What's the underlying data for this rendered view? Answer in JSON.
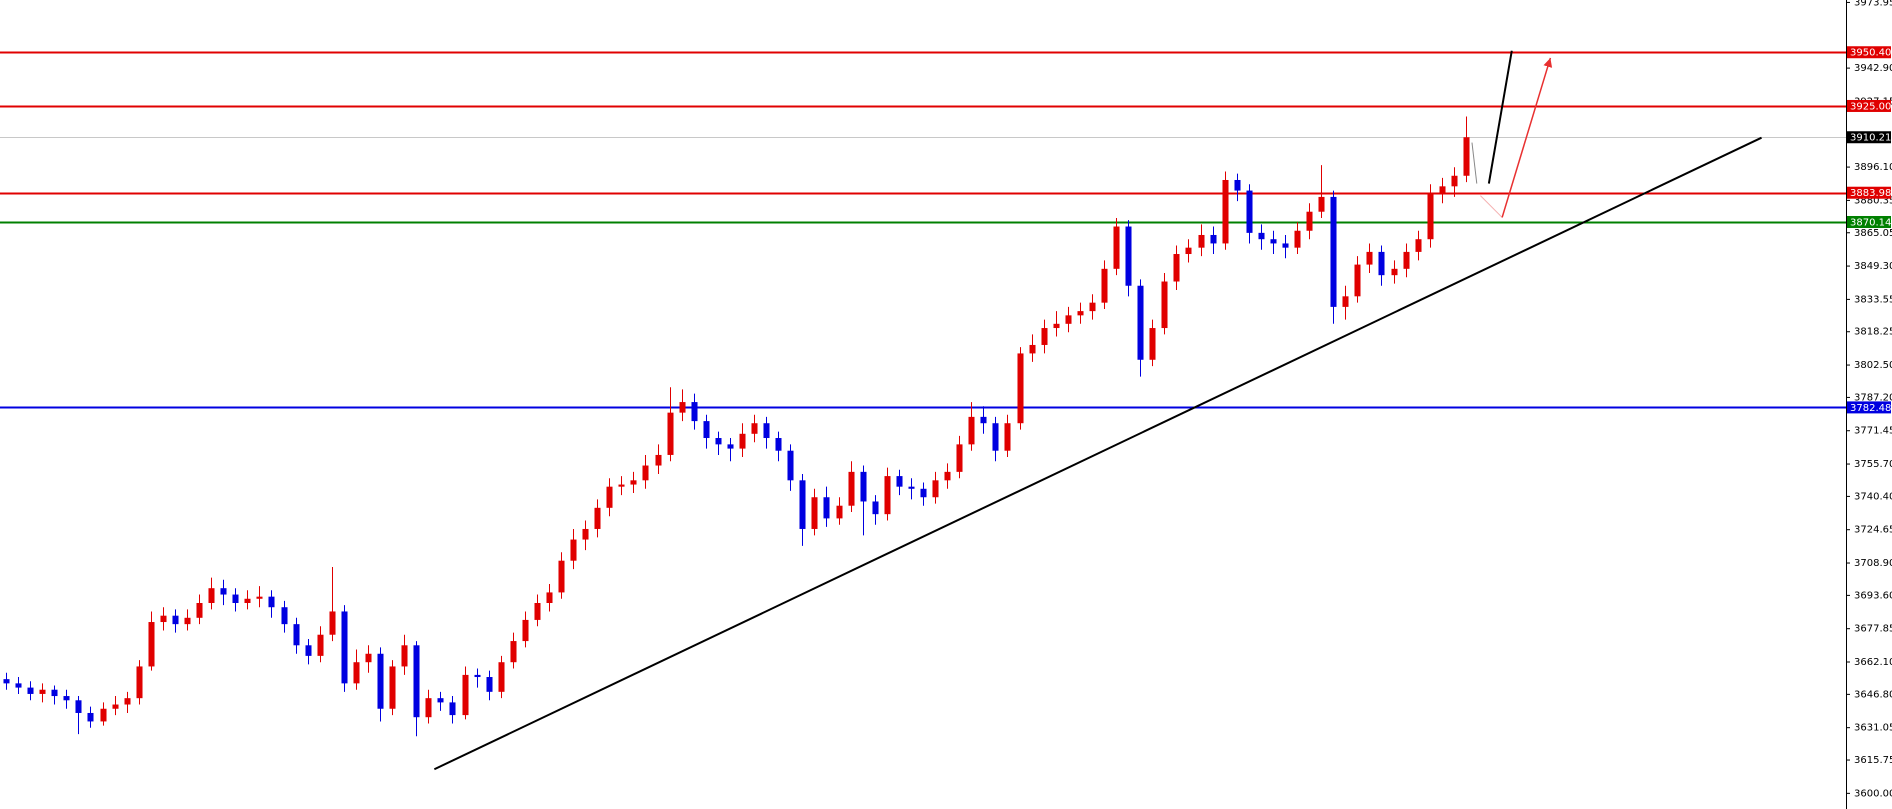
{
  "chart_data": {
    "type": "candlestick",
    "up_color": "#e00000",
    "down_color": "#0000e0",
    "xlim": [
      -0.5,
      152.5
    ],
    "ylim": [
      3592.6,
      3975.1
    ],
    "yticks": [
      3973.95,
      {
        "value": 3942.9,
        "label": "3942.90"
      },
      3927.15,
      {
        "value": 3896.1,
        "label": "3896.10"
      },
      3880.35,
      3865.05,
      {
        "value": 3849.3,
        "label": "3849.30"
      },
      3833.55,
      3818.25,
      {
        "value": 3802.5,
        "label": "3802.50"
      },
      {
        "value": 3787.2,
        "label": "3787.20"
      },
      3771.45,
      {
        "value": 3755.7,
        "label": "3755.70"
      },
      {
        "value": 3740.4,
        "label": "3740.40"
      },
      3724.65,
      {
        "value": 3708.9,
        "label": "3708.90"
      },
      {
        "value": 3693.6,
        "label": "3693.60"
      },
      3677.85,
      {
        "value": 3662.1,
        "label": "3662.10"
      },
      {
        "value": 3646.8,
        "label": "3646.80"
      },
      3631.05,
      3615.75,
      {
        "value": 3600,
        "label": "3600.00"
      }
    ],
    "levels": [
      {
        "value": 3950.4,
        "label": "3950.40",
        "color": "#e00000"
      },
      {
        "value": 3925,
        "label": "3925.00",
        "color": "#e00000"
      },
      {
        "value": 3910.21,
        "label": "3910.21",
        "color": "#c8c8c8",
        "label_color": "#000000"
      },
      {
        "value": 3883.98,
        "label": "3883.98",
        "color": "#e00000"
      },
      {
        "value": 3870.14,
        "label": "3870.14",
        "color": "#008000"
      },
      {
        "value": 3782.48,
        "label": "3782.48",
        "color": "#0000e0"
      }
    ],
    "drawings": [
      {
        "color": "#000000",
        "width": 2,
        "points": [
          [
            35.5,
            3611.4
          ],
          [
            145.5,
            3910
          ]
        ]
      },
      {
        "color": "#888888",
        "width": 1,
        "points": [
          [
            121.5,
            3907.7
          ],
          [
            121.9,
            3888.3
          ]
        ]
      },
      {
        "color": "#000000",
        "width": 2,
        "points": [
          [
            122.9,
            3888.3
          ],
          [
            124.8,
            3951.1
          ]
        ]
      },
      {
        "color": "#f4b0b0",
        "width": 1,
        "points": [
          [
            122.2,
            3882.6
          ],
          [
            124,
            3872.3
          ]
        ]
      },
      {
        "color": "#e83030",
        "width": 1.5,
        "arrow": true,
        "points": [
          [
            124,
            3872.3
          ],
          [
            128,
            3947.7
          ]
        ]
      }
    ],
    "open": [
      3654,
      3652,
      3650,
      3647,
      3649,
      3646,
      3644,
      3638,
      3634,
      3640,
      3642,
      3645,
      3660,
      3681,
      3684,
      3680,
      3683,
      3690,
      3697,
      3694,
      3690,
      3692,
      3693,
      3688,
      3680,
      3670,
      3665,
      3675,
      3686,
      3652,
      3662,
      3666,
      3640,
      3660,
      3670,
      3636,
      3645,
      3643,
      3637,
      3656,
      3655,
      3648,
      3662,
      3672,
      3682,
      3690,
      3695,
      3710,
      3720,
      3725,
      3735,
      3745,
      3746,
      3748,
      3755,
      3760,
      3780,
      3785,
      3776,
      3768,
      3765,
      3763,
      3770,
      3775,
      3768,
      3762,
      3748,
      3725,
      3740,
      3730,
      3736,
      3752,
      3738,
      3732,
      3750,
      3745,
      3744,
      3740,
      3748,
      3752,
      3765,
      3778,
      3775,
      3762,
      3775,
      3808,
      3812,
      3820,
      3822,
      3826,
      3828,
      3832,
      3848,
      3868,
      3840,
      3805,
      3820,
      3842,
      3855,
      3858,
      3864,
      3860,
      3890,
      3885,
      3865,
      3862,
      3860,
      3858,
      3866,
      3875,
      3882,
      3830,
      3835,
      3850,
      3856,
      3845,
      3848,
      3856,
      3862,
      3884,
      3887,
      3892
    ],
    "high": [
      3657,
      3655,
      3653,
      3652,
      3651,
      3649,
      3646,
      3641,
      3643,
      3646,
      3648,
      3663,
      3686,
      3688,
      3687,
      3687,
      3694,
      3702,
      3701,
      3697,
      3696,
      3698,
      3696,
      3691,
      3683,
      3673,
      3679,
      3707,
      3689,
      3668,
      3670,
      3669,
      3663,
      3675,
      3672,
      3649,
      3648,
      3646,
      3660,
      3659,
      3658,
      3665,
      3676,
      3686,
      3694,
      3699,
      3714,
      3725,
      3729,
      3739,
      3749,
      3750,
      3752,
      3760,
      3765,
      3792,
      3791,
      3789,
      3779,
      3771,
      3768,
      3775,
      3779,
      3778,
      3771,
      3765,
      3751,
      3744,
      3745,
      3740,
      3757,
      3755,
      3741,
      3754,
      3753,
      3749,
      3747,
      3752,
      3756,
      3769,
      3785,
      3783,
      3778,
      3779,
      3811,
      3817,
      3824,
      3828,
      3830,
      3832,
      3836,
      3852,
      3872,
      3871,
      3843,
      3824,
      3846,
      3859,
      3862,
      3869,
      3868,
      3894,
      3893,
      3888,
      3869,
      3866,
      3864,
      3870,
      3879,
      3897,
      3885,
      3840,
      3854,
      3860,
      3859,
      3852,
      3860,
      3866,
      3888,
      3891,
      3896,
      3920
    ],
    "low": [
      3649,
      3647,
      3644,
      3643,
      3642,
      3640,
      3628,
      3631,
      3632,
      3637,
      3638,
      3642,
      3658,
      3677,
      3676,
      3677,
      3680,
      3687,
      3689,
      3686,
      3687,
      3688,
      3683,
      3676,
      3666,
      3661,
      3662,
      3672,
      3648,
      3649,
      3657,
      3634,
      3637,
      3656,
      3627,
      3633,
      3639,
      3633,
      3635,
      3650,
      3644,
      3645,
      3659,
      3669,
      3679,
      3686,
      3692,
      3706,
      3715,
      3721,
      3731,
      3741,
      3742,
      3744,
      3751,
      3757,
      3776,
      3772,
      3763,
      3760,
      3757,
      3759,
      3766,
      3763,
      3757,
      3743,
      3717,
      3722,
      3726,
      3727,
      3733,
      3722,
      3727,
      3729,
      3741,
      3739,
      3736,
      3737,
      3744,
      3749,
      3762,
      3770,
      3757,
      3759,
      3772,
      3804,
      3808,
      3816,
      3818,
      3822,
      3824,
      3829,
      3845,
      3835,
      3797,
      3802,
      3817,
      3838,
      3851,
      3854,
      3855,
      3857,
      3880,
      3860,
      3857,
      3855,
      3853,
      3855,
      3862,
      3872,
      3822,
      3824,
      3832,
      3846,
      3840,
      3841,
      3844,
      3852,
      3858,
      3879,
      3882,
      3889
    ],
    "close": [
      3652,
      3650,
      3647,
      3649,
      3646,
      3644,
      3638,
      3634,
      3640,
      3642,
      3645,
      3660,
      3681,
      3684,
      3680,
      3683,
      3690,
      3697,
      3694,
      3690,
      3692,
      3693,
      3688,
      3680,
      3670,
      3665,
      3675,
      3686,
      3652,
      3662,
      3666,
      3640,
      3660,
      3670,
      3636,
      3645,
      3643,
      3637,
      3656,
      3655,
      3648,
      3662,
      3672,
      3682,
      3690,
      3695,
      3710,
      3720,
      3725,
      3735,
      3745,
      3746,
      3748,
      3755,
      3760,
      3780,
      3785,
      3776,
      3768,
      3765,
      3763,
      3770,
      3775,
      3768,
      3762,
      3748,
      3725,
      3740,
      3730,
      3736,
      3752,
      3738,
      3732,
      3750,
      3745,
      3744,
      3740,
      3748,
      3752,
      3765,
      3778,
      3775,
      3762,
      3775,
      3808,
      3812,
      3820,
      3822,
      3826,
      3828,
      3832,
      3848,
      3868,
      3840,
      3805,
      3820,
      3842,
      3855,
      3858,
      3864,
      3860,
      3890,
      3885,
      3865,
      3862,
      3860,
      3858,
      3866,
      3875,
      3882,
      3830,
      3835,
      3850,
      3856,
      3845,
      3848,
      3856,
      3862,
      3884,
      3887,
      3892,
      3910.21
    ]
  }
}
